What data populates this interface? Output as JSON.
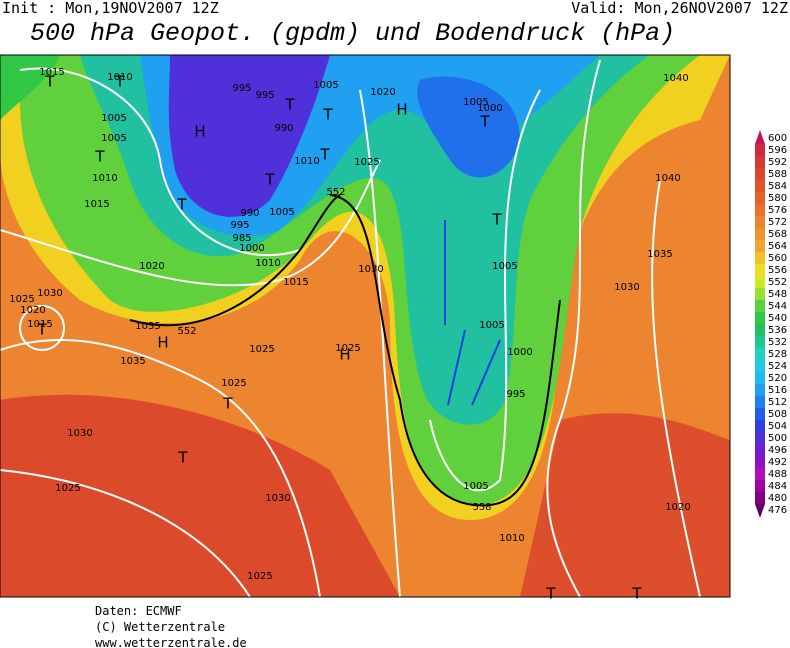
{
  "header": {
    "init": "Init : Mon,19NOV2007 12Z",
    "valid": "Valid: Mon,26NOV2007 12Z",
    "title": "500 hPa Geopot. (gpdm) und Bodendruck (hPa)"
  },
  "map_labels": [
    "1015",
    "1010",
    "T",
    "T",
    "995",
    "995",
    "1005",
    "1020",
    "H",
    "1005",
    "1000",
    "1040",
    "1005",
    "H",
    "T",
    "T",
    "T",
    "990",
    "1005",
    "T",
    "1010",
    "T",
    "1025",
    "1010",
    "T",
    "1040",
    "552",
    "1015",
    "T",
    "990",
    "1005",
    "T",
    "995",
    "985",
    "1000",
    "1020",
    "1010",
    "1005",
    "1035",
    "1030",
    "1015",
    "1030",
    "1030",
    "1025",
    "1020",
    "1015",
    "T",
    "1035",
    "552",
    "H",
    "1005",
    "1025",
    "1025",
    "H",
    "1000",
    "1035",
    "1025",
    "995",
    "T",
    "1030",
    "T",
    "1025",
    "1030",
    "1005",
    "558",
    "1020",
    "1010",
    "1025",
    "T",
    "T"
  ],
  "colorbar": [
    {
      "value": 600,
      "color": "#c8145a"
    },
    {
      "value": 596,
      "color": "#d0283e"
    },
    {
      "value": 592,
      "color": "#d63834"
    },
    {
      "value": 588,
      "color": "#dc462c"
    },
    {
      "value": 584,
      "color": "#e05428"
    },
    {
      "value": 580,
      "color": "#e46228"
    },
    {
      "value": 576,
      "color": "#e8722c"
    },
    {
      "value": 572,
      "color": "#ec8230"
    },
    {
      "value": 568,
      "color": "#f09232"
    },
    {
      "value": 564,
      "color": "#f2a430"
    },
    {
      "value": 560,
      "color": "#f2c026"
    },
    {
      "value": 556,
      "color": "#f0de20"
    },
    {
      "value": 552,
      "color": "#d0e828"
    },
    {
      "value": 548,
      "color": "#98e030"
    },
    {
      "value": 544,
      "color": "#58d23c"
    },
    {
      "value": 540,
      "color": "#30c844"
    },
    {
      "value": 536,
      "color": "#22c064"
    },
    {
      "value": 532,
      "color": "#20c890"
    },
    {
      "value": 528,
      "color": "#20d0c0"
    },
    {
      "value": 524,
      "color": "#20c8e0"
    },
    {
      "value": 520,
      "color": "#20b8f0"
    },
    {
      "value": 516,
      "color": "#20a0f0"
    },
    {
      "value": 512,
      "color": "#2080f0"
    },
    {
      "value": 508,
      "color": "#2060e8"
    },
    {
      "value": 504,
      "color": "#3040e0"
    },
    {
      "value": 500,
      "color": "#5030d8"
    },
    {
      "value": 496,
      "color": "#7020d0"
    },
    {
      "value": 492,
      "color": "#9010c8"
    },
    {
      "value": 488,
      "color": "#b010b8"
    },
    {
      "value": 484,
      "color": "#a000a0"
    },
    {
      "value": 480,
      "color": "#800080"
    },
    {
      "value": 476,
      "color": "#600060"
    }
  ],
  "footer": {
    "source": "Daten: ECMWF",
    "copyright": "(C) Wetterzentrale",
    "url": "www.wetterzentrale.de"
  }
}
